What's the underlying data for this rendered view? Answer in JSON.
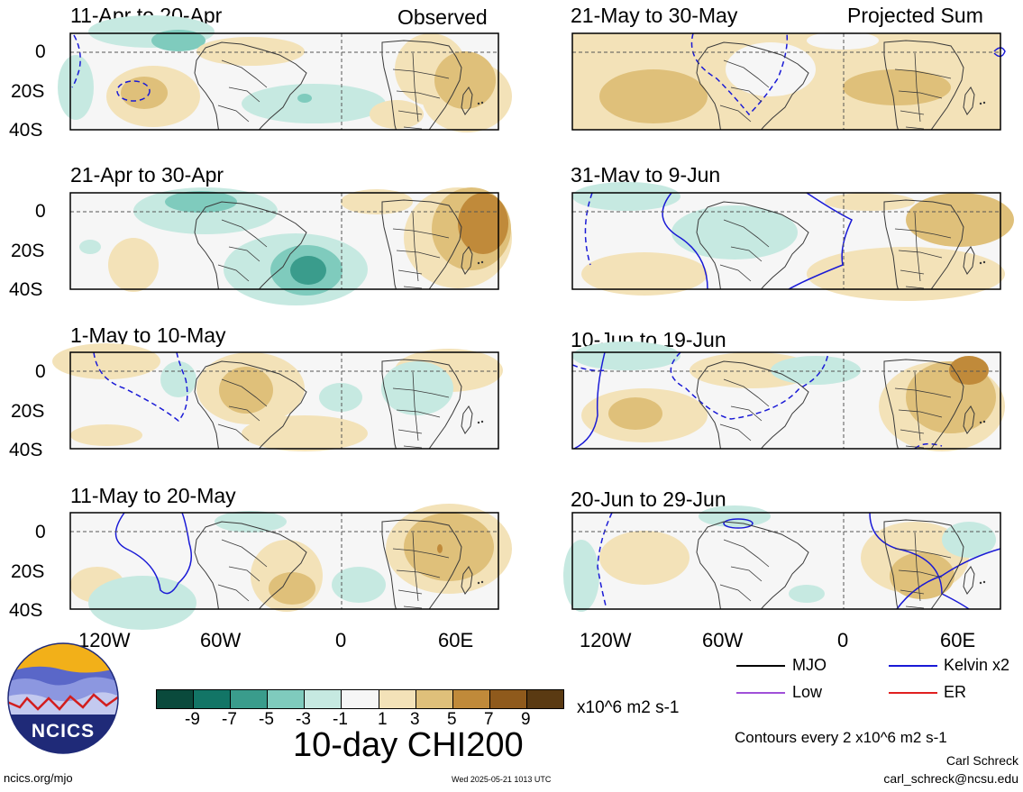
{
  "header": {
    "observed_label": "Observed",
    "projected_label": "Projected Sum"
  },
  "panels_left": [
    {
      "title": "11-Apr to 20-Apr"
    },
    {
      "title": "21-Apr to 30-Apr"
    },
    {
      "title": "1-May to 10-May"
    },
    {
      "title": "11-May to 20-May"
    }
  ],
  "panels_right": [
    {
      "title": "21-May to 30-May"
    },
    {
      "title": "31-May to 9-Jun"
    },
    {
      "title": "10-Jun to 19-Jun"
    },
    {
      "title": "20-Jun to 29-Jun"
    }
  ],
  "axes": {
    "lat_labels": [
      "0",
      "20S",
      "40S"
    ],
    "lon_labels": [
      "120W",
      "60W",
      "0",
      "60E"
    ]
  },
  "legend": {
    "items": [
      {
        "label": "MJO",
        "color": "#000000"
      },
      {
        "label": "Kelvin x2",
        "color": "#1a1ad6"
      },
      {
        "label": "Low",
        "color": "#a050d8"
      },
      {
        "label": "ER",
        "color": "#e02020"
      }
    ],
    "contour_note": "Contours every 2 x10^6 m2 s-1"
  },
  "colorbar": {
    "ticks": [
      "-9",
      "-7",
      "-5",
      "-3",
      "-1",
      "1",
      "3",
      "5",
      "7",
      "9"
    ],
    "colors": [
      "#0a4a3c",
      "#127566",
      "#3a9c8c",
      "#7fcbbd",
      "#c6e9e1",
      "#f6f6f6",
      "#f3e2b8",
      "#dfc07a",
      "#c08a3a",
      "#8f5a1c",
      "#5a3a12"
    ],
    "units": "x10^6 m2 s-1",
    "title": "10-day CHI200"
  },
  "logo": {
    "text": "NCICS"
  },
  "footer": {
    "url": "ncics.org/mjo",
    "timestamp": "Wed 2025-05-21 1013 UTC",
    "author": "Carl Schreck",
    "email": "carl_schreck@ncsu.edu"
  }
}
